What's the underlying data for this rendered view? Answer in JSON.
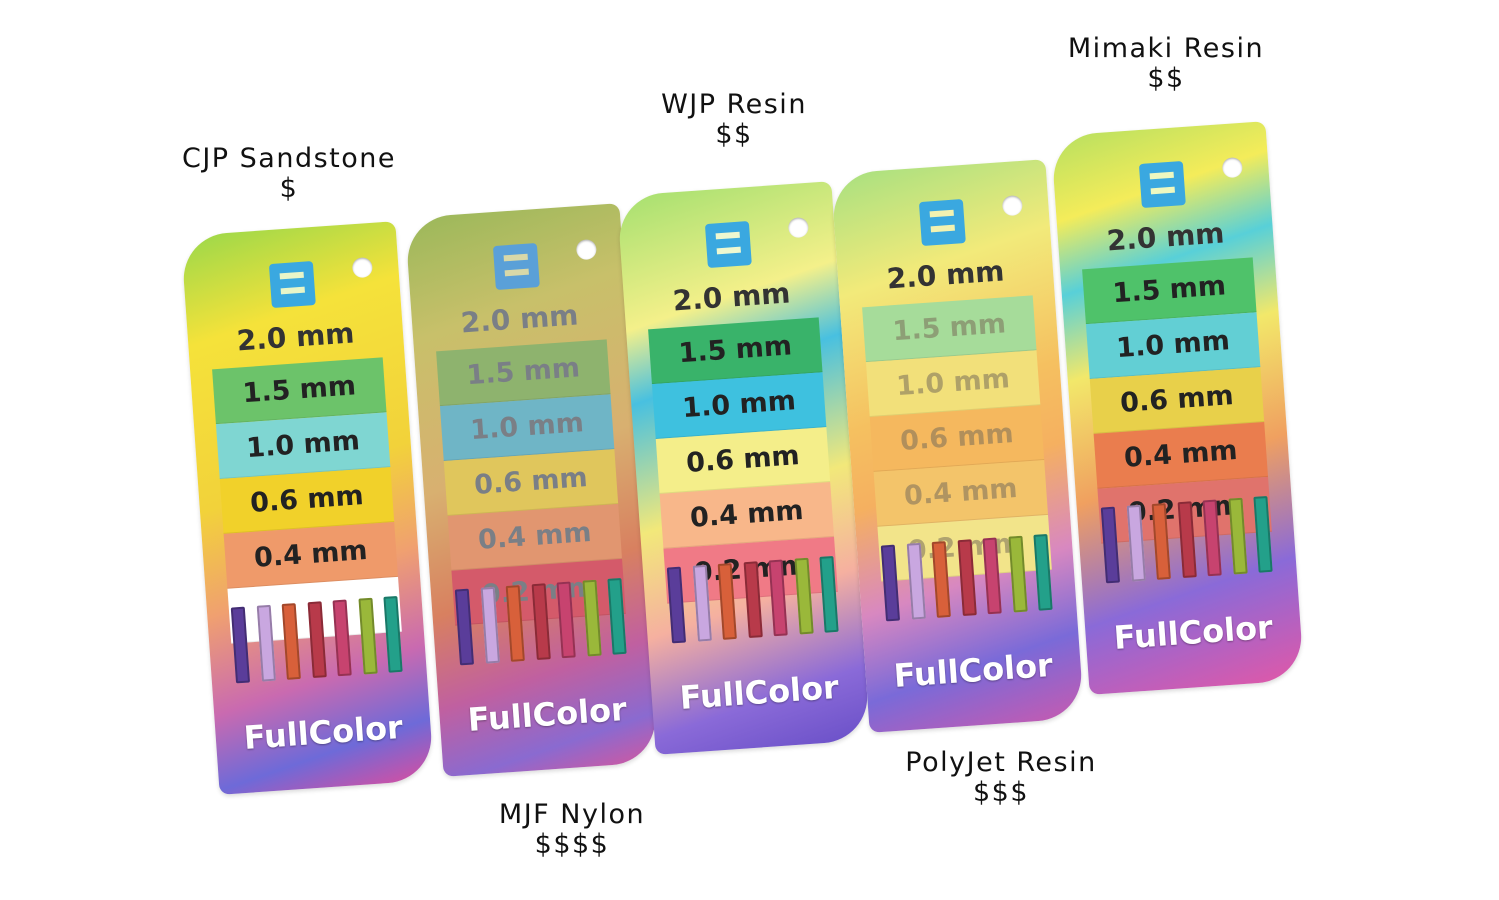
{
  "samples": [
    {
      "material": "CJP Sandstone",
      "price": "$",
      "top_label": "2.0 mm",
      "steps": [
        {
          "label": "1.5 mm",
          "color": "#6cc36a"
        },
        {
          "label": "1.0 mm",
          "color": "#7fd6d2"
        },
        {
          "label": "0.6 mm",
          "color": "#f1d12a"
        },
        {
          "label": "0.4 mm",
          "color": "#ef9a6a"
        },
        {
          "label": "",
          "color": "#ffffff"
        }
      ],
      "brand": "FullColor"
    },
    {
      "material": "MJF Nylon",
      "price": "$$$$",
      "top_label": "2.0 mm",
      "steps": [
        {
          "label": "1.5 mm",
          "color": "#8eb36e"
        },
        {
          "label": "1.0 mm",
          "color": "#6fb5c6"
        },
        {
          "label": "0.6 mm",
          "color": "#e0c65c"
        },
        {
          "label": "0.4 mm",
          "color": "#e19670"
        },
        {
          "label": "0.2 mm",
          "color": "#d45a6a"
        }
      ],
      "brand": "FullColor"
    },
    {
      "material": "WJP Resin",
      "price": "$$",
      "top_label": "2.0 mm",
      "steps": [
        {
          "label": "1.5 mm",
          "color": "#39b36a"
        },
        {
          "label": "1.0 mm",
          "color": "#3ec1df"
        },
        {
          "label": "0.6 mm",
          "color": "#f4ee8a"
        },
        {
          "label": "0.4 mm",
          "color": "#f8b78a"
        },
        {
          "label": "0.2 mm",
          "color": "#f07a86"
        }
      ],
      "brand": "FullColor"
    },
    {
      "material": "PolyJet Resin",
      "price": "$$$",
      "top_label": "2.0 mm",
      "steps": [
        {
          "label": "1.5 mm",
          "color": "#a6dc9a"
        },
        {
          "label": "1.0 mm",
          "color": "#f2e07a"
        },
        {
          "label": "0.6 mm",
          "color": "#f5b85e"
        },
        {
          "label": "0.4 mm",
          "color": "#f3c46a"
        },
        {
          "label": "0.2 mm",
          "color": "#f2e48a"
        }
      ],
      "brand": "FullColor"
    },
    {
      "material": "Mimaki Resin",
      "price": "$$",
      "top_label": "2.0 mm",
      "steps": [
        {
          "label": "1.5 mm",
          "color": "#4fc26a"
        },
        {
          "label": "1.0 mm",
          "color": "#62cfd4"
        },
        {
          "label": "0.6 mm",
          "color": "#e8d04a"
        },
        {
          "label": "0.4 mm",
          "color": "#ea7d4e"
        },
        {
          "label": "0.2 mm",
          "color": "#e0736c"
        }
      ],
      "brand": "FullColor"
    }
  ],
  "bar_colors": [
    "#5a3d9a",
    "#c9a7e0",
    "#d8603a",
    "#b83a4a",
    "#c7436f",
    "#9ab83a",
    "#23a08a"
  ],
  "logo_color": "#3aa8e0"
}
